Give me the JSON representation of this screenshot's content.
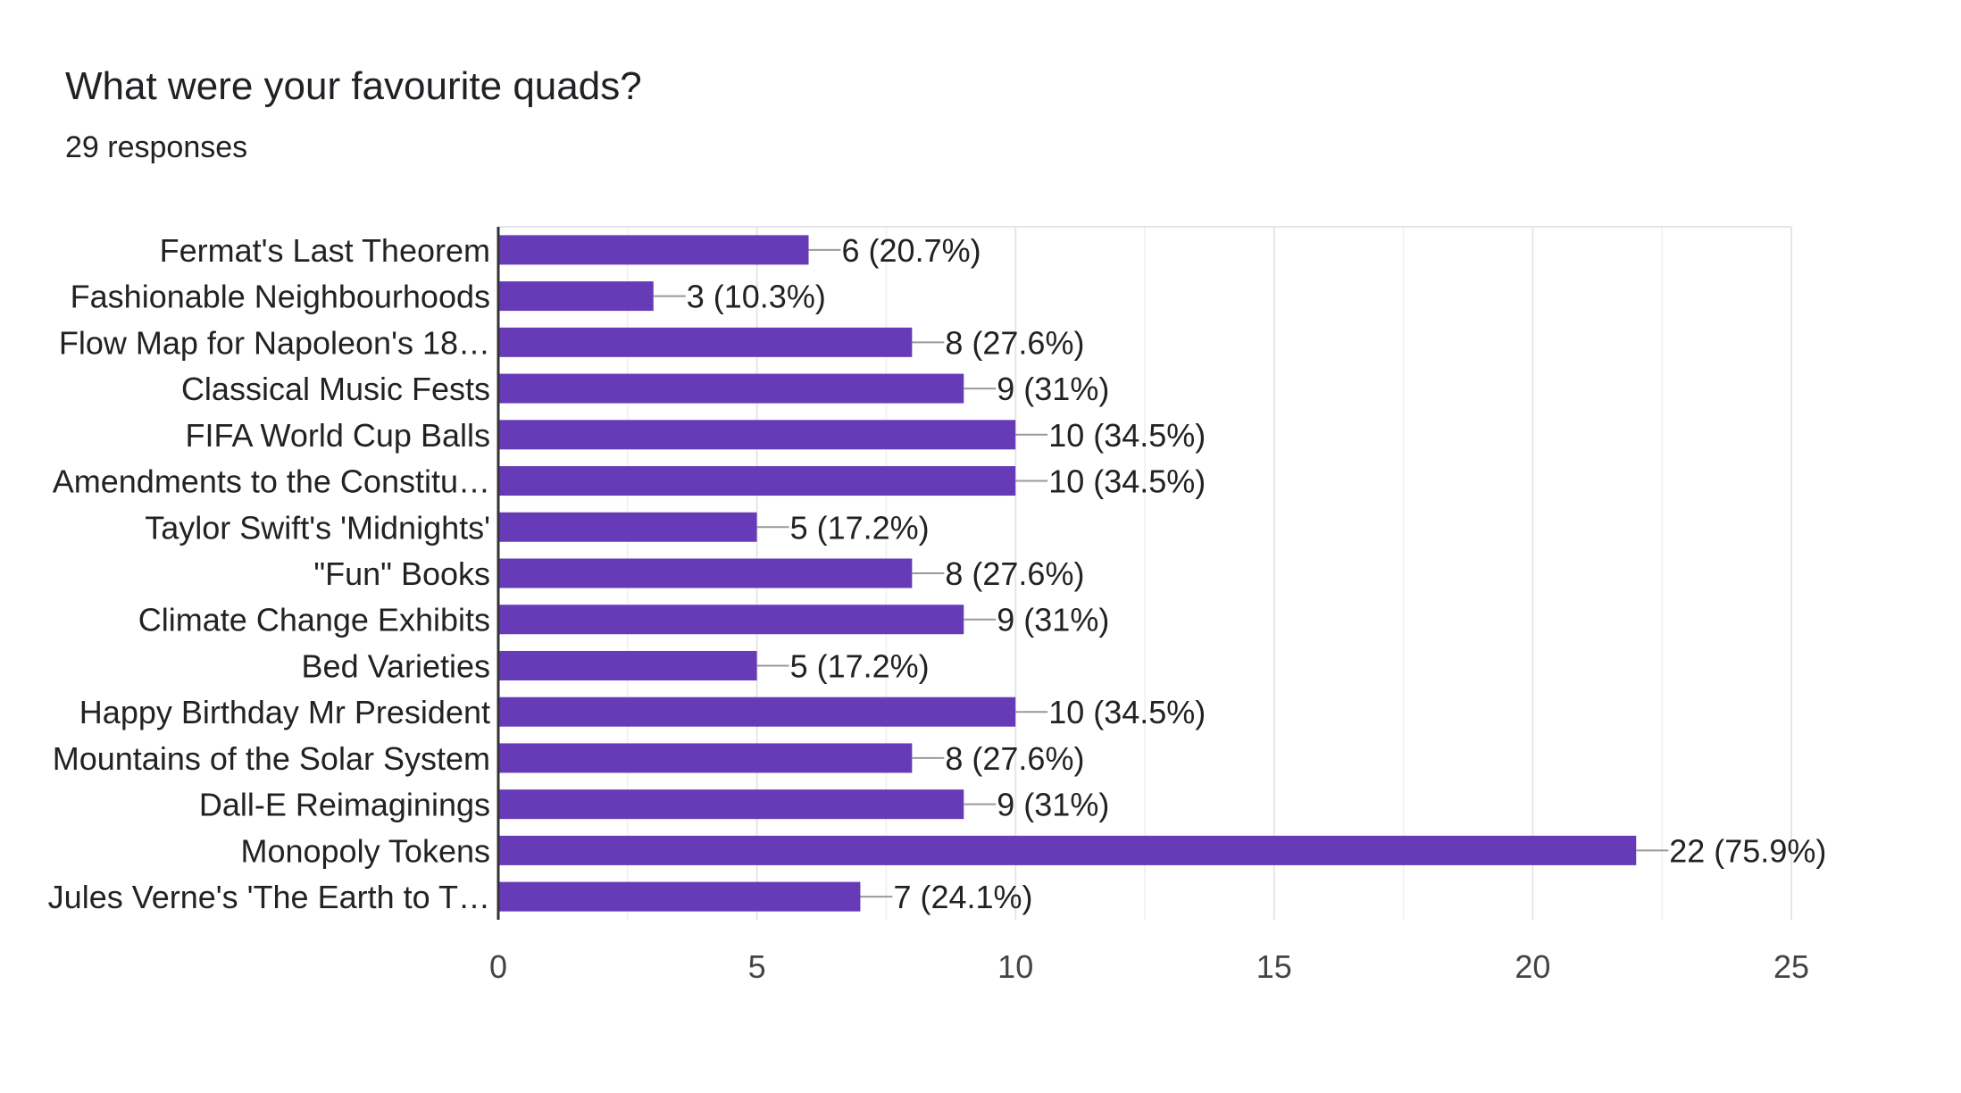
{
  "header": {
    "title": "What were your favourite quads?",
    "responses": "29 responses"
  },
  "colors": {
    "bar": "#673ab7",
    "grid": "#e6e6e6",
    "axis": "#333333",
    "leader": "#999999"
  },
  "chart_data": {
    "type": "bar",
    "orientation": "horizontal",
    "categories": [
      "Fermat's Last Theorem",
      "Fashionable Neighbourhoods",
      "Flow Map for Napoleon's 18…",
      "Classical Music Fests",
      "FIFA World Cup Balls",
      "Amendments to the Constitu…",
      "Taylor Swift's 'Midnights'",
      "\"Fun\" Books",
      "Climate Change Exhibits",
      "Bed Varieties",
      "Happy Birthday Mr President",
      "Mountains of the Solar System",
      "Dall-E Reimaginings",
      "Monopoly Tokens",
      "Jules Verne's 'The Earth to T…"
    ],
    "values": [
      6,
      3,
      8,
      9,
      10,
      10,
      5,
      8,
      9,
      5,
      10,
      8,
      9,
      22,
      7
    ],
    "data_labels": [
      "6 (20.7%)",
      "3 (10.3%)",
      "8 (27.6%)",
      "9 (31%)",
      "10 (34.5%)",
      "10 (34.5%)",
      "5 (17.2%)",
      "8 (27.6%)",
      "9 (31%)",
      "5 (17.2%)",
      "10 (34.5%)",
      "8 (27.6%)",
      "9 (31%)",
      "22 (75.9%)",
      "7 (24.1%)"
    ],
    "xlim": [
      0,
      25
    ],
    "xticks": [
      0,
      5,
      10,
      15,
      20,
      25
    ],
    "grid": true
  }
}
